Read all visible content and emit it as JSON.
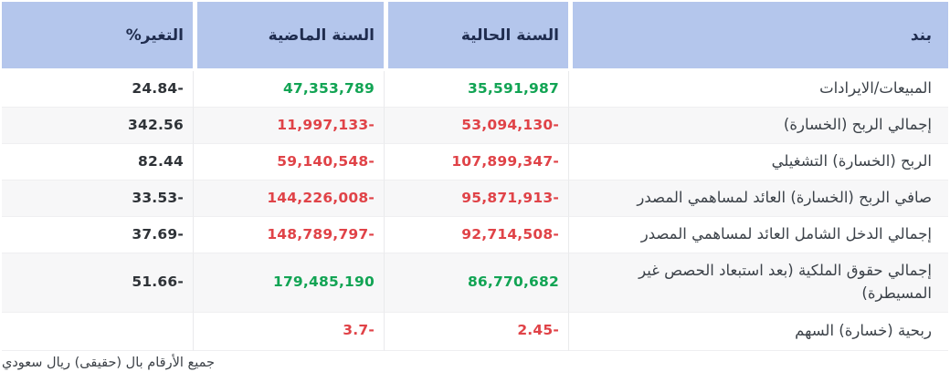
{
  "colors": {
    "header_bg": "#b4c6ec",
    "header_text": "#1f2c4e",
    "positive": "#12a454",
    "negative": "#e04348",
    "change_text": "#2f3338",
    "row_alt_bg": "#f7f7f8"
  },
  "table": {
    "columns": [
      {
        "key": "item",
        "label": "بند"
      },
      {
        "key": "current_year",
        "label": "السنة الحالية"
      },
      {
        "key": "previous_year",
        "label": "السنة الماضية"
      },
      {
        "key": "change_pct",
        "label": "التغير%"
      }
    ],
    "rows": [
      {
        "item": "المبيعات/الايرادات",
        "current": "35,591,987",
        "current_color": "positive",
        "previous": "47,353,789",
        "previous_color": "positive",
        "change": "-24.84"
      },
      {
        "item": "إجمالي الربح (الخسارة)",
        "current": "-53,094,130",
        "current_color": "negative",
        "previous": "-11,997,133",
        "previous_color": "negative",
        "change": "342.56"
      },
      {
        "item": "الربح (الخسارة) التشغيلي",
        "current": "-107,899,347",
        "current_color": "negative",
        "previous": "-59,140,548",
        "previous_color": "negative",
        "change": "82.44"
      },
      {
        "item": "صافي الربح (الخسارة) العائد لمساهمي المصدر",
        "current": "-95,871,913",
        "current_color": "negative",
        "previous": "-144,226,008",
        "previous_color": "negative",
        "change": "-33.53"
      },
      {
        "item": "إجمالي الدخل الشامل العائد لمساهمي المصدر",
        "current": "-92,714,508",
        "current_color": "negative",
        "previous": "-148,789,797",
        "previous_color": "negative",
        "change": "-37.69"
      },
      {
        "item": "إجمالي حقوق الملكية (بعد استبعاد الحصص غير المسيطرة)",
        "current": "86,770,682",
        "current_color": "positive",
        "previous": "179,485,190",
        "previous_color": "positive",
        "change": "-51.66"
      },
      {
        "item": "ربحية (خسارة) السهم",
        "current": "-2.45",
        "current_color": "negative",
        "previous": "-3.7",
        "previous_color": "negative",
        "change": ""
      }
    ]
  },
  "footer": {
    "note": "جميع الأرقام بال (حقيقى) ريال سعودي"
  }
}
